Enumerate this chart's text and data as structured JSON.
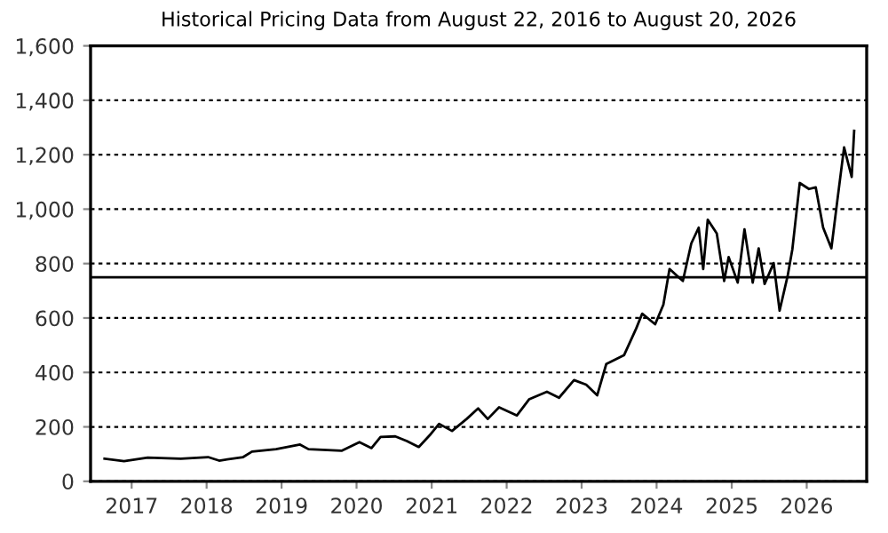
{
  "chart_data": {
    "type": "line",
    "title": "Historical Pricing Data from August 22, 2016 to August 20, 2026",
    "x": [
      "2016-08-22",
      "2016-11-25",
      "2017-03-20",
      "2017-08-28",
      "2018-01-08",
      "2018-03-03",
      "2018-06-28",
      "2018-08-10",
      "2018-12-05",
      "2019-04-01",
      "2019-05-12",
      "2019-10-20",
      "2020-01-15",
      "2020-03-14",
      "2020-04-27",
      "2020-07-08",
      "2020-09-02",
      "2020-10-30",
      "2020-12-28",
      "2021-02-06",
      "2021-04-10",
      "2021-06-20",
      "2021-08-15",
      "2021-10-01",
      "2021-11-25",
      "2022-02-20",
      "2022-04-20",
      "2022-07-16",
      "2022-09-13",
      "2022-11-25",
      "2023-01-23",
      "2023-03-18",
      "2023-05-01",
      "2023-07-27",
      "2023-09-24",
      "2023-10-23",
      "2023-12-25",
      "2024-02-03",
      "2024-03-04",
      "2024-05-08",
      "2024-06-18",
      "2024-07-24",
      "2024-08-15",
      "2024-09-06",
      "2024-10-20",
      "2024-11-25",
      "2024-12-17",
      "2025-01-30",
      "2025-03-04",
      "2025-04-13",
      "2025-05-12",
      "2025-06-10",
      "2025-07-24",
      "2025-08-22",
      "2025-10-01",
      "2025-10-23",
      "2025-11-28",
      "2026-01-12",
      "2026-02-14",
      "2026-03-22",
      "2026-05-01",
      "2026-05-30",
      "2026-07-02",
      "2026-08-08",
      "2026-08-20"
    ],
    "series": [
      {
        "color": "#000000",
        "values": [
          83,
          74,
          87,
          83,
          89,
          76,
          89,
          109,
          118,
          135,
          118,
          112,
          144,
          122,
          163,
          165,
          148,
          126,
          174,
          211,
          185,
          229,
          268,
          229,
          272,
          242,
          301,
          329,
          307,
          372,
          355,
          316,
          431,
          464,
          562,
          616,
          577,
          649,
          780,
          736,
          874,
          932,
          780,
          961,
          911,
          736,
          824,
          730,
          926,
          730,
          856,
          725,
          802,
          627,
          758,
          852,
          1096,
          1074,
          1080,
          932,
          856,
          1031,
          1227,
          1118,
          1288
        ]
      }
    ],
    "xlim": [
      "2016-06-15",
      "2026-10-20"
    ],
    "xticks": [
      {
        "value": "2017-01-01",
        "label": "2017"
      },
      {
        "value": "2018-01-01",
        "label": "2018"
      },
      {
        "value": "2019-01-01",
        "label": "2019"
      },
      {
        "value": "2020-01-01",
        "label": "2020"
      },
      {
        "value": "2021-01-01",
        "label": "2021"
      },
      {
        "value": "2022-01-01",
        "label": "2022"
      },
      {
        "value": "2023-01-01",
        "label": "2023"
      },
      {
        "value": "2024-01-01",
        "label": "2024"
      },
      {
        "value": "2025-01-01",
        "label": "2025"
      },
      {
        "value": "2026-01-01",
        "label": "2026"
      }
    ],
    "ylim": [
      0,
      1600
    ],
    "yticks": [
      0,
      200,
      400,
      600,
      800,
      {
        "value": 1000,
        "label": "1,000"
      },
      {
        "value": 1200,
        "label": "1,200"
      },
      {
        "value": 1400,
        "label": "1,400"
      },
      {
        "value": 1600,
        "label": "1,600"
      }
    ],
    "grid": "y",
    "line_style": "solid",
    "marker": "none",
    "ref_lines": [
      {
        "axis": "y",
        "value": 750,
        "color": "#000000",
        "line_style": "solid"
      }
    ]
  }
}
